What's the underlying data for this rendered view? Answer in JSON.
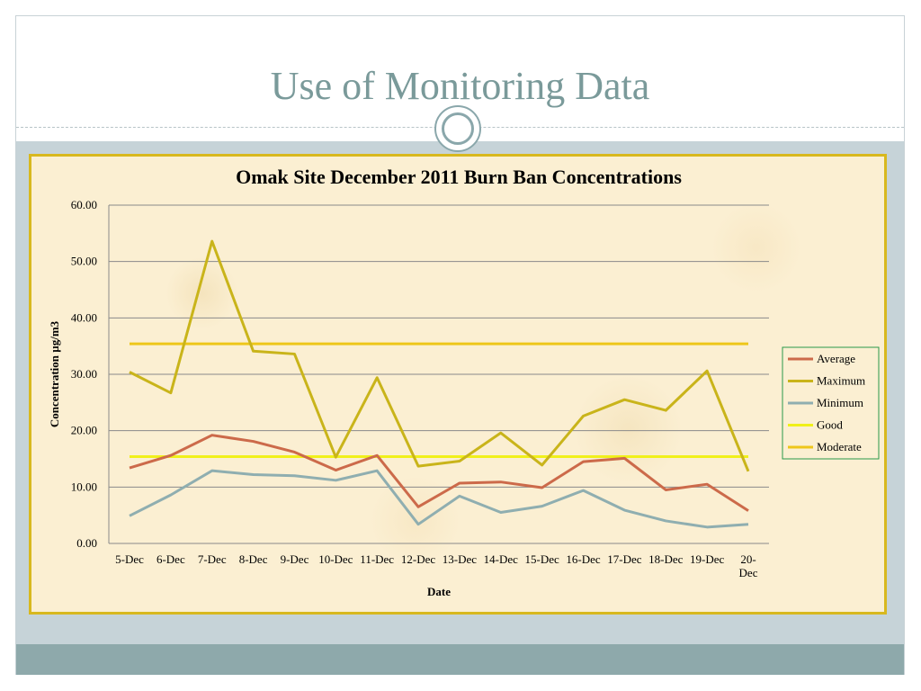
{
  "slide": {
    "title": "Use of Monitoring Data"
  },
  "colors": {
    "accent": "#7a9a9a",
    "chart_border": "#d8b81e",
    "band": "#c6d3d8",
    "footer": "#8ea9ab"
  },
  "chart_data": {
    "type": "line",
    "title": "Omak Site December 2011 Burn Ban Concentrations",
    "xlabel": "Date",
    "ylabel": "Concentration µg/m3",
    "ylim": [
      0,
      60
    ],
    "yticks": [
      "0.00",
      "10.00",
      "20.00",
      "30.00",
      "40.00",
      "50.00",
      "60.00"
    ],
    "categories": [
      "5-Dec",
      "6-Dec",
      "7-Dec",
      "8-Dec",
      "9-Dec",
      "10-Dec",
      "11-Dec",
      "12-Dec",
      "13-Dec",
      "14-Dec",
      "15-Dec",
      "16-Dec",
      "17-Dec",
      "18-Dec",
      "19-Dec",
      "20-Dec"
    ],
    "grid": true,
    "legend_position": "right",
    "series": [
      {
        "name": "Average",
        "color": "#cc6a4a",
        "values": [
          13.4,
          15.6,
          19.2,
          18.1,
          16.2,
          13.0,
          15.6,
          6.5,
          10.7,
          10.9,
          9.9,
          14.5,
          15.1,
          9.5,
          10.5,
          5.8
        ]
      },
      {
        "name": "Maximum",
        "color": "#c9b41a",
        "values": [
          30.4,
          26.7,
          53.6,
          34.1,
          33.6,
          15.3,
          29.4,
          13.7,
          14.6,
          19.6,
          13.9,
          22.6,
          25.5,
          23.6,
          30.6,
          12.8
        ]
      },
      {
        "name": "Minimum",
        "color": "#8faeb0",
        "values": [
          4.9,
          8.6,
          12.9,
          12.2,
          12.0,
          11.2,
          12.9,
          3.4,
          8.4,
          5.5,
          6.6,
          9.4,
          5.9,
          4.0,
          2.9,
          3.4
        ]
      },
      {
        "name": "Good",
        "color": "#f0f01a",
        "values": [
          15.4,
          15.4,
          15.4,
          15.4,
          15.4,
          15.4,
          15.4,
          15.4,
          15.4,
          15.4,
          15.4,
          15.4,
          15.4,
          15.4,
          15.4,
          15.4
        ]
      },
      {
        "name": "Moderate",
        "color": "#eec61a",
        "values": [
          35.4,
          35.4,
          35.4,
          35.4,
          35.4,
          35.4,
          35.4,
          35.4,
          35.4,
          35.4,
          35.4,
          35.4,
          35.4,
          35.4,
          35.4,
          35.4
        ]
      }
    ]
  }
}
